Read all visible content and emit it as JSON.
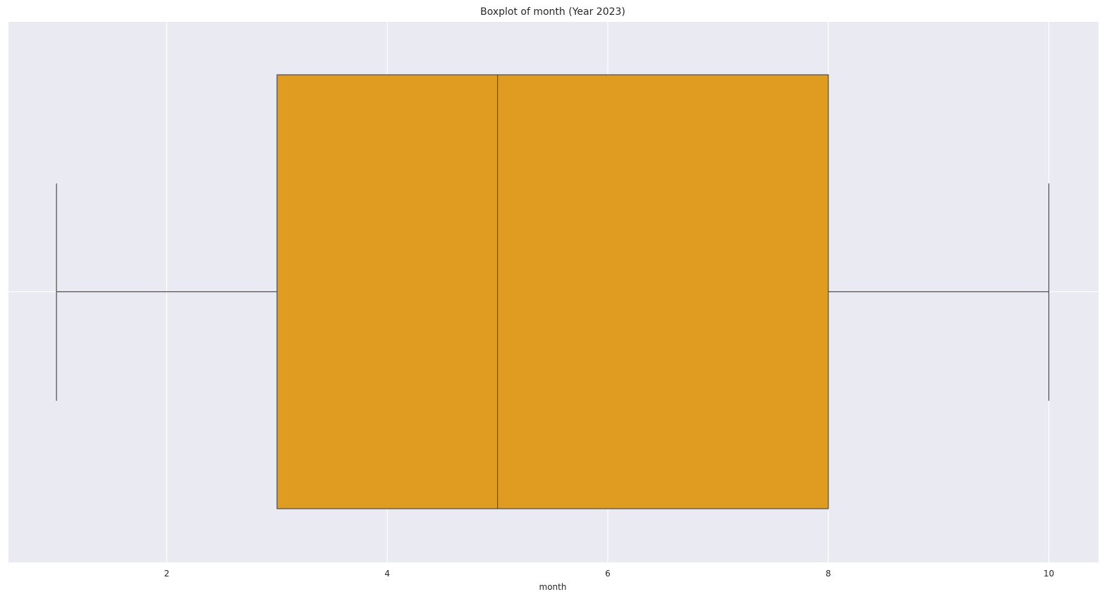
{
  "chart_data": {
    "type": "boxplot",
    "title": "Boxplot of month (Year 2023)",
    "xlabel": "month",
    "ylabel": "",
    "orientation": "horizontal",
    "xlim": [
      0.7,
      10.7
    ],
    "xticks": [
      2,
      4,
      6,
      8,
      10
    ],
    "xtick_labels": [
      "2",
      "4",
      "6",
      "8",
      "10"
    ],
    "grid": true,
    "legend": "none",
    "box": {
      "whisker_low": 1,
      "q1": 3,
      "median": 5,
      "q3": 8,
      "whisker_high": 10
    }
  },
  "colors": {
    "plot_background": "#eaeaf2",
    "grid": "#ffffff",
    "box_fill": "#df9c21",
    "box_line": "#4d4d4d",
    "text": "#262626"
  }
}
